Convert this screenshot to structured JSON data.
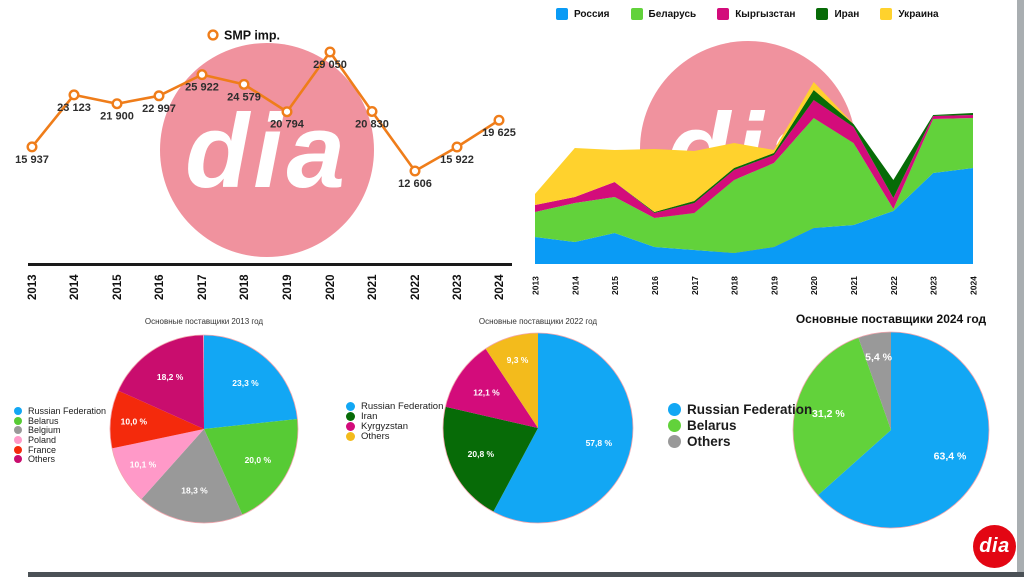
{
  "page": {
    "background": "#ffffff",
    "bottom_bar_color": "#4b5156",
    "right_strip_color": "#a9aeb1"
  },
  "branding": {
    "watermark_text": "dia",
    "watermark_circle_color": "#f0929e",
    "watermark_text_color": "#ffffff",
    "logo_text": "dia",
    "logo_bg_color": "#e30613",
    "logo_text_color": "#ffffff"
  },
  "chart_data": [
    {
      "id": "smp-imports-line",
      "type": "line",
      "legend": [
        {
          "label": "SMP imp.",
          "color": "#ef7d1a",
          "marker": "ring"
        }
      ],
      "legend_position": "top",
      "grid": false,
      "y_axis": "hidden",
      "categories": [
        "2013",
        "2014",
        "2015",
        "2016",
        "2017",
        "2018",
        "2019",
        "2020",
        "2021",
        "2022",
        "2023",
        "2024"
      ],
      "values": [
        15937,
        23123,
        21900,
        22997,
        25922,
        24579,
        20794,
        29050,
        20830,
        12606,
        15922,
        19625
      ],
      "value_labels": [
        "15 937",
        "23 123",
        "21 900",
        "22 997",
        "25 922",
        "24 579",
        "20 794",
        "29 050",
        "20 830",
        "12 606",
        "15 922",
        "19 625"
      ],
      "line_color": "#ef7d1a",
      "marker_fill": "#ffffff",
      "label_color": "#2d2d2d",
      "axis_color": "#1a1a1a"
    },
    {
      "id": "suppliers-stacked-area",
      "type": "area",
      "stacked": true,
      "grid": false,
      "y_axis": "hidden",
      "legend_position": "top",
      "note": "no y-axis shown; series values estimated from chart geometry, relative units",
      "categories": [
        "2013",
        "2014",
        "2015",
        "2016",
        "2017",
        "2018",
        "2019",
        "2020",
        "2021",
        "2022",
        "2023",
        "2024"
      ],
      "series": [
        {
          "name": "Россия",
          "color": "#0a9bf5",
          "values": [
            27,
            22,
            31,
            17,
            14,
            11,
            17,
            36,
            39,
            53,
            91,
            96
          ]
        },
        {
          "name": "Беларусь",
          "color": "#62d23b",
          "values": [
            25,
            39,
            36,
            29,
            37,
            73,
            84,
            110,
            82,
            2,
            54,
            50
          ]
        },
        {
          "name": "Кыргызстан",
          "color": "#d30c7b",
          "values": [
            7,
            6,
            15,
            5,
            10,
            10,
            8,
            18,
            16,
            11,
            3,
            3
          ]
        },
        {
          "name": "Иран",
          "color": "#076b07",
          "values": [
            0,
            0,
            0,
            1,
            2,
            2,
            2,
            10,
            3,
            18,
            1,
            2
          ]
        },
        {
          "name": "Украина",
          "color": "#ffd22d",
          "values": [
            11,
            49,
            32,
            63,
            50,
            25,
            3,
            8,
            0,
            0,
            0,
            0
          ]
        }
      ]
    },
    {
      "id": "pie-2013",
      "type": "pie",
      "title": "Основные поставщики 2013 год",
      "slices": [
        {
          "label": "Russian Federation",
          "value": 23.3,
          "display": "23,3 %",
          "color": "#12a7f4"
        },
        {
          "label": "Belarus",
          "value": 20.0,
          "display": "20,0 %",
          "color": "#57cb35"
        },
        {
          "label": "Belgium",
          "value": 18.3,
          "display": "18,3 %",
          "color": "#999999"
        },
        {
          "label": "Poland",
          "value": 10.1,
          "display": "10,1 %",
          "color": "#ff99c8"
        },
        {
          "label": "France",
          "value": 10.0,
          "display": "10,0 %",
          "color": "#f42a0c"
        },
        {
          "label": "Others",
          "value": 18.2,
          "display": "18,2 %",
          "color": "#c90d6e"
        }
      ]
    },
    {
      "id": "pie-2022",
      "type": "pie",
      "title": "Основные поставщики 2022 год",
      "slices": [
        {
          "label": "Russian Federation",
          "value": 57.8,
          "display": "57,8 %",
          "color": "#12a7f4"
        },
        {
          "label": "Iran",
          "value": 20.8,
          "display": "20,8 %",
          "color": "#076b07"
        },
        {
          "label": "Kyrgyzstan",
          "value": 12.1,
          "display": "12,1 %",
          "color": "#d30c7b"
        },
        {
          "label": "Others",
          "value": 9.3,
          "display": "9,3 %",
          "color": "#f3bb1c"
        }
      ]
    },
    {
      "id": "pie-2024",
      "type": "pie",
      "title": "Основные поставщики 2024 год",
      "slices": [
        {
          "label": "Russian Federation",
          "value": 63.4,
          "display": "63,4 %",
          "color": "#12a7f4"
        },
        {
          "label": "Belarus",
          "value": 31.2,
          "display": "31,2 %",
          "color": "#62d23b"
        },
        {
          "label": "Others",
          "value": 5.4,
          "display": "5,4 %",
          "color": "#999999"
        }
      ]
    }
  ]
}
